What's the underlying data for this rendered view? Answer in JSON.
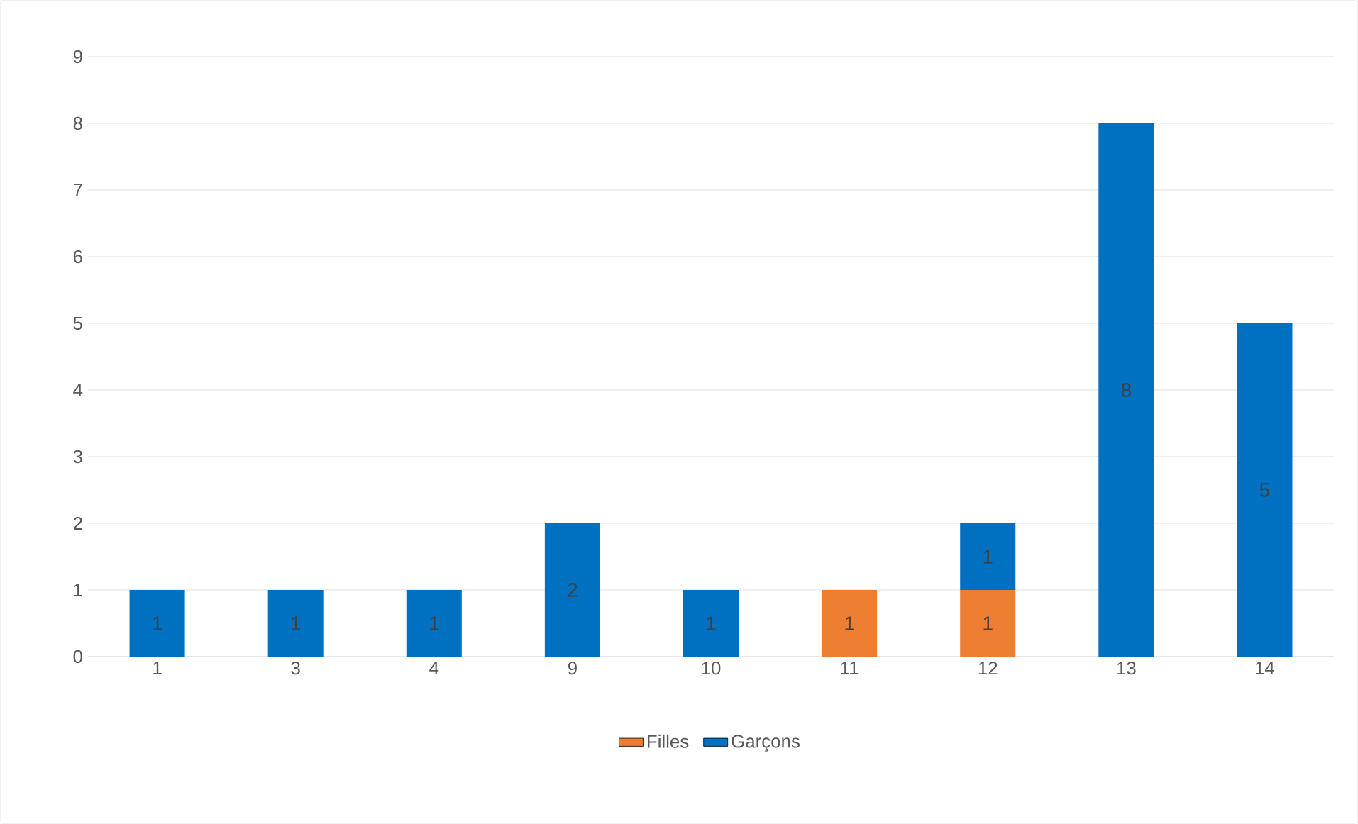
{
  "chart_data": {
    "type": "bar",
    "stacked": true,
    "categories": [
      "1",
      "3",
      "4",
      "9",
      "10",
      "11",
      "12",
      "13",
      "14"
    ],
    "series": [
      {
        "name": "Filles",
        "color": "#ed7d31",
        "values": [
          null,
          null,
          null,
          null,
          null,
          1,
          1,
          null,
          null
        ]
      },
      {
        "name": "Garçons",
        "color": "#0070c0",
        "values": [
          1,
          1,
          1,
          2,
          1,
          null,
          1,
          8,
          5
        ]
      }
    ],
    "ylim": [
      0,
      9
    ],
    "yticks": [
      0,
      1,
      2,
      3,
      4,
      5,
      6,
      7,
      8,
      9
    ],
    "grid": "y",
    "legend": "bottom",
    "data_labels": true
  }
}
